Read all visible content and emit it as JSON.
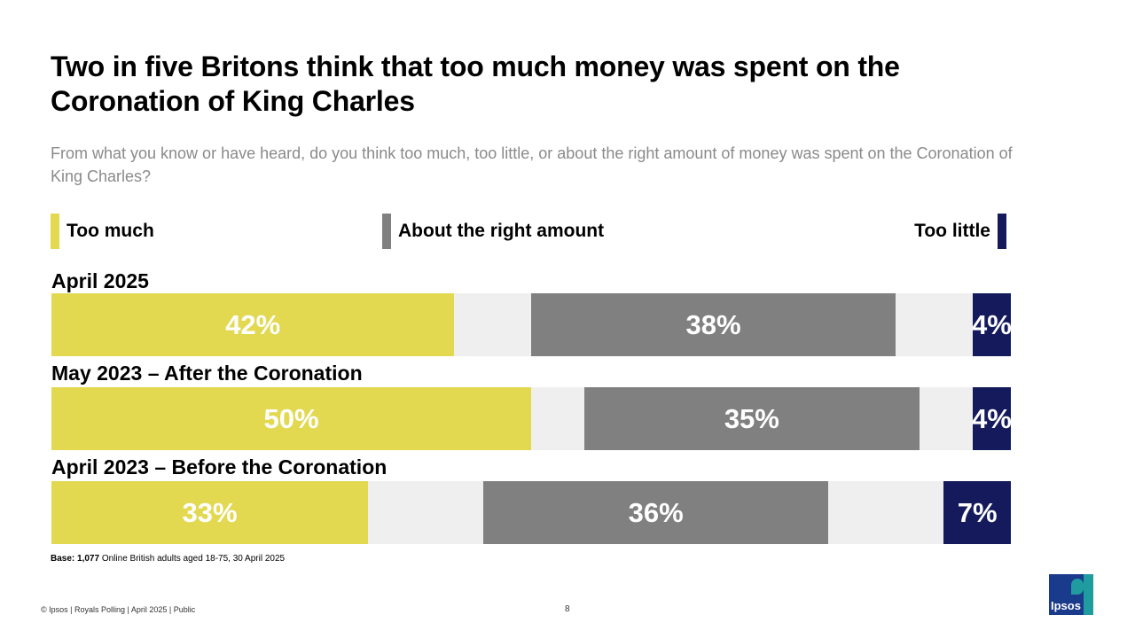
{
  "header": {
    "title": "Two in five Britons think that too much money was spent on the Coronation of King Charles",
    "subtitle": "From what you know or have heard, do you think too much, too little, or about the right amount of money was spent on the Coronation of King Charles?"
  },
  "legend": {
    "too_much": "Too much",
    "right_amount": "About the right amount",
    "too_little": "Too little"
  },
  "colors": {
    "too_much": "#e2d951",
    "right_amount": "#808080",
    "too_little": "#141a5c",
    "track": "#efefef"
  },
  "chart_data": {
    "type": "bar",
    "orientation": "horizontal",
    "stacked": true,
    "categories": [
      "April 2025",
      "May 2023 – After the Coronation",
      "April 2023 – Before the Coronation"
    ],
    "series": [
      {
        "name": "Too much",
        "values": [
          42,
          50,
          33
        ]
      },
      {
        "name": "About the right amount",
        "values": [
          38,
          35,
          36
        ]
      },
      {
        "name": "Too little",
        "values": [
          4,
          4,
          7
        ]
      }
    ],
    "data_labels": [
      [
        "42%",
        "38%",
        "4%"
      ],
      [
        "50%",
        "35%",
        "4%"
      ],
      [
        "33%",
        "36%",
        "7%"
      ]
    ],
    "xlim": [
      0,
      100
    ],
    "legend_position": "top"
  },
  "footer": {
    "base_label": "Base:",
    "base_n": "1,077",
    "base_text": "Online British adults aged 18-75, 30 April 2025",
    "source": "© Ipsos | Royals Polling | April 2025 | Public",
    "page": "8",
    "logo": "Ipsos"
  }
}
